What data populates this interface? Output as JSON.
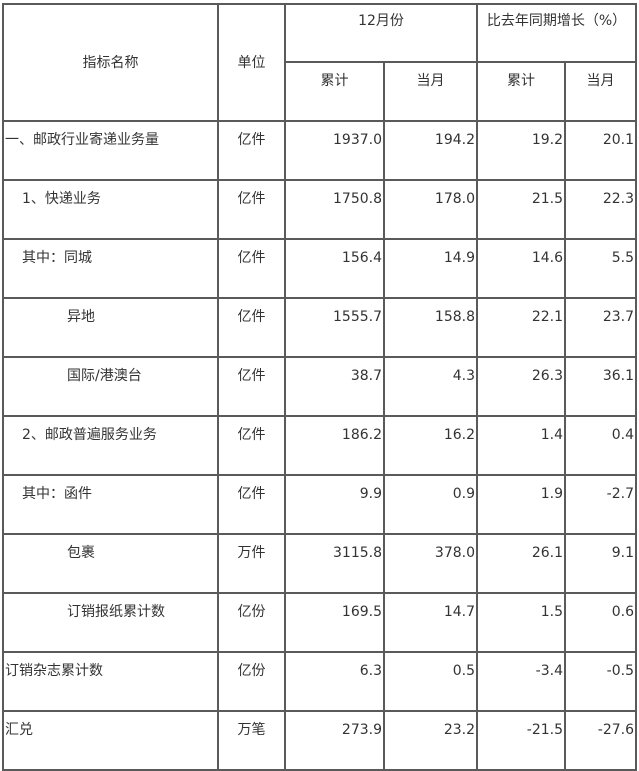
{
  "header": {
    "name": "指标名称",
    "unit": "单位",
    "group_month": "12月份",
    "group_growth": "比去年同期增长（%）",
    "cum": "累计",
    "cur": "当月",
    "cum2": "累计",
    "cur2": "当月"
  },
  "rows": [
    {
      "name": "一、邮政行业寄递业务量",
      "indent": 0,
      "unit": "亿件",
      "cum": "1937.0",
      "cur": "194.2",
      "g_cum": "19.2",
      "g_cur": "20.1"
    },
    {
      "name": "1、快递业务",
      "indent": 1,
      "unit": "亿件",
      "cum": "1750.8",
      "cur": "178.0",
      "g_cum": "21.5",
      "g_cur": "22.3"
    },
    {
      "name": "其中：同城",
      "indent": 1,
      "unit": "亿件",
      "cum": "156.4",
      "cur": "14.9",
      "g_cum": "14.6",
      "g_cur": "5.5"
    },
    {
      "name": "异地",
      "indent": 2,
      "unit": "亿件",
      "cum": "1555.7",
      "cur": "158.8",
      "g_cum": "22.1",
      "g_cur": "23.7"
    },
    {
      "name": "国际/港澳台",
      "indent": 2,
      "unit": "亿件",
      "cum": "38.7",
      "cur": "4.3",
      "g_cum": "26.3",
      "g_cur": "36.1"
    },
    {
      "name": "2、邮政普遍服务业务",
      "indent": 1,
      "unit": "亿件",
      "cum": "186.2",
      "cur": "16.2",
      "g_cum": "1.4",
      "g_cur": "0.4"
    },
    {
      "name": "其中：函件",
      "indent": 1,
      "unit": "亿件",
      "cum": "9.9",
      "cur": "0.9",
      "g_cum": "1.9",
      "g_cur": "-2.7"
    },
    {
      "name": "包裹",
      "indent": 2,
      "unit": "万件",
      "cum": "3115.8",
      "cur": "378.0",
      "g_cum": "26.1",
      "g_cur": "9.1"
    },
    {
      "name": "订销报纸累计数",
      "indent": 2,
      "unit": "亿份",
      "cum": "169.5",
      "cur": "14.7",
      "g_cum": "1.5",
      "g_cur": "0.6"
    },
    {
      "name": "订销杂志累计数",
      "indent": 0,
      "unit": "亿份",
      "cum": "6.3",
      "cur": "0.5",
      "g_cum": "-3.4",
      "g_cur": "-0.5"
    },
    {
      "name": "汇兑",
      "indent": 0,
      "unit": "万笔",
      "cum": "273.9",
      "cur": "23.2",
      "g_cum": "-21.5",
      "g_cur": "-27.6"
    }
  ]
}
